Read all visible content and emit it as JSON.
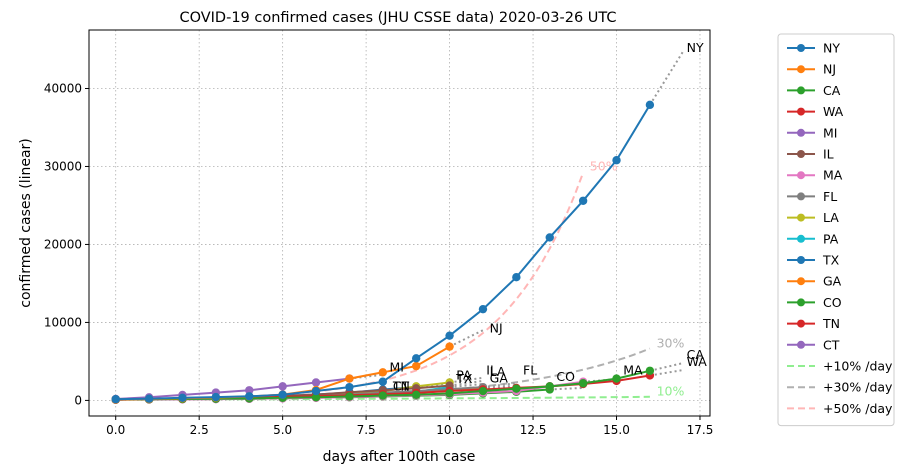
{
  "chart_data": {
    "type": "line",
    "title": "COVID-19 confirmed cases (JHU CSSE data) 2020-03-26 UTC",
    "xlabel": "days after 100th case",
    "ylabel": "confirmed cases (linear)",
    "xlim": [
      -0.8,
      17.8
    ],
    "ylim": [
      -2000,
      47500
    ],
    "xticks": [
      0,
      2.5,
      5,
      7.5,
      10,
      12.5,
      15,
      17.5
    ],
    "xtick_labels": [
      "0.0",
      "2.5",
      "5.0",
      "7.5",
      "10.0",
      "12.5",
      "15.0",
      "17.5"
    ],
    "yticks": [
      0,
      10000,
      20000,
      30000,
      40000
    ],
    "ytick_labels": [
      "0",
      "10000",
      "20000",
      "30000",
      "40000"
    ],
    "grid": true,
    "legend_position": "outside-right",
    "series": [
      {
        "name": "NY",
        "color": "#1f77b4",
        "x": [
          0,
          1,
          2,
          3,
          4,
          5,
          6,
          7,
          8,
          9,
          10,
          11,
          12,
          13,
          14,
          15,
          16
        ],
        "values": [
          150,
          220,
          330,
          420,
          530,
          730,
          1200,
          1700,
          2400,
          5400,
          8300,
          11700,
          15800,
          20900,
          25600,
          30800,
          37900
        ],
        "proj_x": [
          16,
          17
        ],
        "proj_values": [
          37900,
          44800
        ],
        "end_label": "NY",
        "end_x": 17.1,
        "end_y": 44700
      },
      {
        "name": "NJ",
        "color": "#ff7f0e",
        "x": [
          0,
          1,
          2,
          3,
          4,
          5,
          6,
          7,
          8,
          9,
          10
        ],
        "values": [
          100,
          180,
          270,
          360,
          500,
          740,
          1330,
          2800,
          3600,
          4400,
          6900
        ],
        "proj_x": [
          10,
          11
        ],
        "proj_values": [
          6900,
          9000
        ],
        "end_label": "NJ",
        "end_x": 11.2,
        "end_y": 8700
      },
      {
        "name": "CA",
        "color": "#2ca02c",
        "x": [
          0,
          1,
          2,
          3,
          4,
          5,
          6,
          7,
          8,
          9,
          10,
          11,
          12,
          13,
          14,
          15,
          16
        ],
        "values": [
          130,
          150,
          180,
          210,
          250,
          330,
          400,
          500,
          620,
          720,
          900,
          1200,
          1500,
          1800,
          2200,
          2800,
          3800
        ],
        "proj_x": [
          16,
          17
        ],
        "proj_values": [
          3800,
          4800
        ],
        "end_label": "CA",
        "end_x": 17.1,
        "end_y": 5300
      },
      {
        "name": "WA",
        "color": "#d62728",
        "x": [
          0,
          1,
          2,
          3,
          4,
          5,
          6,
          7,
          8,
          9,
          10,
          11,
          12,
          13,
          14,
          15,
          16
        ],
        "values": [
          110,
          160,
          200,
          300,
          400,
          450,
          530,
          650,
          800,
          950,
          1200,
          1400,
          1600,
          1800,
          2100,
          2500,
          3200
        ],
        "proj_x": [
          16,
          17
        ],
        "proj_values": [
          3200,
          3900
        ],
        "end_label": "WA",
        "end_x": 17.1,
        "end_y": 4400
      },
      {
        "name": "MI",
        "color": "#9467bd",
        "x": [
          0,
          1,
          2,
          3,
          4,
          5,
          6,
          7
        ],
        "values": [
          180,
          400,
          700,
          1000,
          1300,
          1800,
          2300,
          2800
        ],
        "proj_x": [
          7,
          8
        ],
        "proj_values": [
          2800,
          3300
        ],
        "end_label": "MI",
        "end_x": 8.2,
        "end_y": 3700
      },
      {
        "name": "IL",
        "color": "#8c564b",
        "x": [
          0,
          1,
          2,
          3,
          4,
          5,
          6,
          7,
          8,
          9,
          10
        ],
        "values": [
          100,
          150,
          250,
          300,
          400,
          580,
          750,
          1050,
          1300,
          1550,
          1900
        ],
        "proj_x": [
          10,
          11
        ],
        "proj_values": [
          1900,
          2500
        ],
        "end_label": "IL",
        "end_x": 11.1,
        "end_y": 3300
      },
      {
        "name": "MA",
        "color": "#e377c2",
        "x": [
          0,
          1,
          2,
          3,
          4,
          5,
          6,
          7,
          8,
          9,
          10,
          11,
          12,
          13,
          14
        ],
        "values": [
          100,
          110,
          130,
          160,
          200,
          260,
          320,
          420,
          530,
          640,
          780,
          1000,
          1200,
          1800,
          2400
        ],
        "proj_x": [
          14,
          15
        ],
        "proj_values": [
          2400,
          2700
        ],
        "end_label": "MA",
        "end_x": 15.2,
        "end_y": 3300
      },
      {
        "name": "FL",
        "color": "#7f7f7f",
        "x": [
          0,
          1,
          2,
          3,
          4,
          5,
          6,
          7,
          8,
          9,
          10,
          11
        ],
        "values": [
          100,
          140,
          180,
          220,
          320,
          420,
          560,
          760,
          1000,
          1200,
          1450,
          1700
        ],
        "proj_x": [
          11,
          12
        ],
        "proj_values": [
          1700,
          2200
        ],
        "end_label": "FL",
        "end_x": 12.2,
        "end_y": 3300
      },
      {
        "name": "LA",
        "color": "#bcbd22",
        "x": [
          0,
          1,
          2,
          3,
          4,
          5,
          6,
          7,
          8,
          9,
          10
        ],
        "values": [
          100,
          140,
          200,
          260,
          360,
          480,
          590,
          840,
          1170,
          1800,
          2300
        ],
        "proj_x": [
          10,
          11
        ],
        "proj_values": [
          2300,
          2900
        ],
        "end_label": "LA",
        "end_x": 11.2,
        "end_y": 3100
      },
      {
        "name": "PA",
        "color": "#17becf",
        "x": [
          0,
          1,
          2,
          3,
          4,
          5,
          6,
          7,
          8,
          9,
          10
        ],
        "values": [
          100,
          130,
          180,
          210,
          300,
          380,
          480,
          640,
          850,
          1100,
          1700
        ],
        "proj_x": [
          10,
          11
        ],
        "proj_values": [
          1700,
          2100
        ],
        "end_label": "PA",
        "end_x": 10.2,
        "end_y": 2700
      },
      {
        "name": "TX",
        "color": "#1f77b4",
        "x": [
          0,
          1,
          2,
          3,
          4,
          5,
          6,
          7,
          8,
          9
        ],
        "values": [
          100,
          160,
          210,
          300,
          390,
          560,
          760,
          1000,
          1400,
          1700
        ],
        "proj_x": [
          9,
          10
        ],
        "proj_values": [
          1700,
          2200
        ],
        "end_label": "TX",
        "end_x": 10.2,
        "end_y": 2200
      },
      {
        "name": "GA",
        "color": "#ff7f0e",
        "x": [
          0,
          1,
          2,
          3,
          4,
          5,
          6,
          7,
          8,
          9,
          10,
          11
        ],
        "values": [
          100,
          140,
          170,
          210,
          280,
          400,
          500,
          620,
          770,
          1000,
          1250,
          1500
        ],
        "proj_x": [
          11,
          12
        ],
        "proj_values": [
          1500,
          1900
        ],
        "end_label": "GA",
        "end_x": 11.2,
        "end_y": 2300
      },
      {
        "name": "CO",
        "color": "#2ca02c",
        "x": [
          0,
          1,
          2,
          3,
          4,
          5,
          6,
          7,
          8,
          9,
          10,
          11,
          12,
          13
        ],
        "values": [
          100,
          130,
          160,
          180,
          210,
          280,
          360,
          400,
          500,
          600,
          700,
          900,
          1100,
          1400
        ],
        "proj_x": [
          13,
          14
        ],
        "proj_values": [
          1400,
          1600
        ],
        "end_label": "CO",
        "end_x": 13.2,
        "end_y": 2500
      },
      {
        "name": "TN",
        "color": "#d62728",
        "x": [
          0,
          1,
          2,
          3,
          4,
          5,
          6,
          7,
          8
        ],
        "values": [
          100,
          150,
          230,
          250,
          320,
          420,
          520,
          620,
          780
        ],
        "proj_x": [
          8,
          9
        ],
        "proj_values": [
          780,
          950
        ],
        "end_label": "TN",
        "end_x": 8.3,
        "end_y": 1300
      },
      {
        "name": "CT",
        "color": "#9467bd",
        "x": [
          0,
          1,
          2,
          3,
          4,
          5,
          6,
          7,
          8
        ],
        "values": [
          100,
          150,
          200,
          240,
          320,
          420,
          550,
          610,
          880
        ],
        "proj_x": [
          8,
          9
        ],
        "proj_values": [
          880,
          1100
        ],
        "end_label": "CT",
        "end_x": 8.3,
        "end_y": 1300
      }
    ],
    "reference_lines": [
      {
        "name": "+10% /day",
        "color": "#90ee90",
        "rate": 0.1,
        "start": 100,
        "x_end": 16,
        "label": "10%",
        "label_x": 16.2,
        "label_y": 600
      },
      {
        "name": "+30% /day",
        "color": "#b0b0b0",
        "rate": 0.3,
        "start": 100,
        "x_end": 16,
        "label": "30%",
        "label_x": 16.2,
        "label_y": 6800
      },
      {
        "name": "+50% /day",
        "color": "#ffb6b6",
        "rate": 0.5,
        "start": 100,
        "x_end": 14,
        "label": "50%",
        "label_x": 14.2,
        "label_y": 29500
      }
    ]
  }
}
